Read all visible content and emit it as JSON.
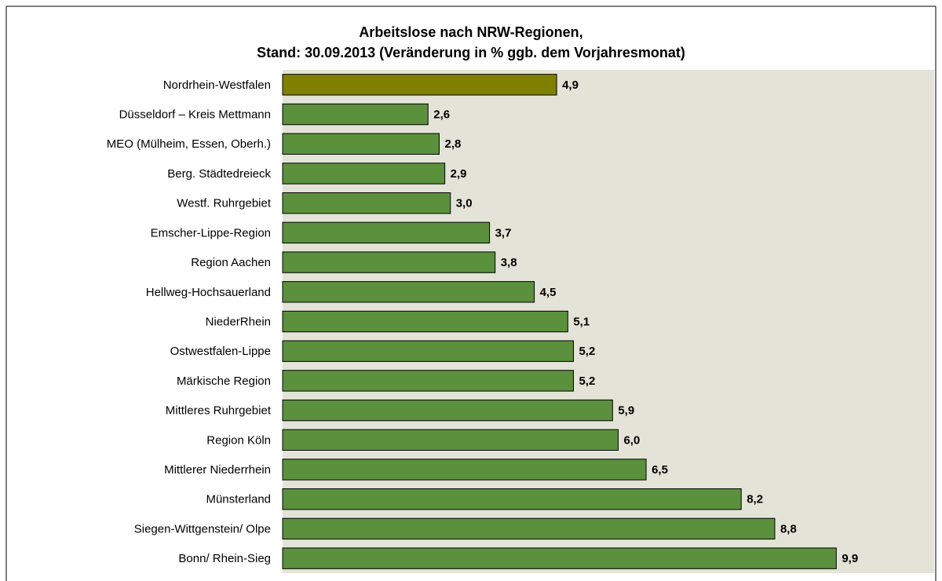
{
  "chart_data": {
    "type": "hbar",
    "title": [
      "Arbeitslose nach NRW-Regionen,",
      "Stand: 30.09.2013 (Veränderung in % ggb. dem Vorjahresmonat)"
    ],
    "categories": [
      "Nordrhein-Westfalen",
      "Düsseldorf – Kreis Mettmann",
      "MEO (Mülheim, Essen, Oberh.)",
      "Berg. Städtedreieck",
      "Westf. Ruhrgebiet",
      "Emscher-Lippe-Region",
      "Region Aachen",
      "Hellweg-Hochsauerland",
      "NiederRhein",
      "Ostwestfalen-Lippe",
      "Märkische Region",
      "Mittleres Ruhrgebiet",
      "Region Köln",
      "Mittlerer Niederrhein",
      "Münsterland",
      "Siegen-Wittgenstein/ Olpe",
      "Bonn/ Rhein-Sieg"
    ],
    "values": [
      4.9,
      2.6,
      2.8,
      2.9,
      3.0,
      3.7,
      3.8,
      4.5,
      5.1,
      5.2,
      5.2,
      5.9,
      6.0,
      6.5,
      8.2,
      8.8,
      9.9
    ],
    "value_labels": [
      "4,9",
      "2,6",
      "2,8",
      "2,9",
      "3,0",
      "3,7",
      "3,8",
      "4,5",
      "5,1",
      "5,2",
      "5,2",
      "5,9",
      "6,0",
      "6,5",
      "8,2",
      "8,8",
      "9,9"
    ],
    "colors": [
      "#808000",
      "#5b913d",
      "#5b913d",
      "#5b913d",
      "#5b913d",
      "#5b913d",
      "#5b913d",
      "#5b913d",
      "#5b913d",
      "#5b913d",
      "#5b913d",
      "#5b913d",
      "#5b913d",
      "#5b913d",
      "#5b913d",
      "#5b913d",
      "#5b913d"
    ],
    "xlim": [
      0,
      11.65
    ],
    "plot_background": "#e3e3d7"
  }
}
